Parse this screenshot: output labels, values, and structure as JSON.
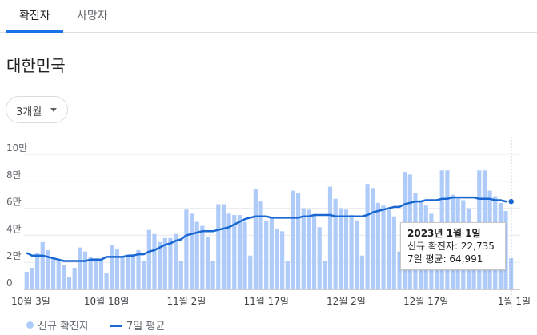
{
  "tabs": [
    {
      "label": "확진자",
      "active": true
    },
    {
      "label": "사망자",
      "active": false
    }
  ],
  "region": "대한민국",
  "range_select": {
    "value": "3개월"
  },
  "colors": {
    "bar": "#aecbfa",
    "line": "#1967d2",
    "tab_underline": "#1a73e8"
  },
  "chart_data": {
    "type": "bar",
    "y_ticks": [
      "0",
      "2만",
      "4만",
      "6만",
      "8만",
      "10만"
    ],
    "ylim": [
      0,
      110000
    ],
    "x_tick_labels": [
      "10월 3일",
      "10월 18일",
      "11월 2일",
      "11월 17일",
      "12월 2일",
      "12월 17일",
      "1월 1일"
    ],
    "series": [
      {
        "name": "신규 확진자",
        "type": "bar",
        "values": [
          13000,
          16000,
          27000,
          35000,
          29000,
          23000,
          21000,
          18000,
          9000,
          16000,
          31000,
          28000,
          24000,
          23000,
          22000,
          12000,
          33000,
          30000,
          24000,
          25000,
          26000,
          29000,
          21000,
          44000,
          41000,
          35000,
          38000,
          38000,
          41000,
          21000,
          59000,
          56000,
          50000,
          47000,
          39000,
          21000,
          63000,
          63000,
          56000,
          55000,
          55000,
          50000,
          25000,
          74000,
          65000,
          51000,
          53000,
          45000,
          43000,
          21000,
          73000,
          71000,
          60000,
          59000,
          55000,
          46000,
          21000,
          76000,
          67000,
          60000,
          59000,
          55000,
          51000,
          25000,
          78000,
          75000,
          64000,
          62000,
          59000,
          54000,
          28000,
          87000,
          85000,
          71000,
          66000,
          62000,
          56000,
          29000,
          88000,
          88000,
          70000,
          67000,
          66000,
          60000,
          34000,
          88000,
          88000,
          73000,
          69000,
          64000,
          58000,
          23000
        ],
        "bar_values_from_index_71_to_90_partially_hidden_by_tooltip": null
      },
      {
        "name": "7일 평균",
        "type": "line",
        "values": [
          27000,
          25000,
          25000,
          25000,
          24000,
          23000,
          22000,
          21000,
          21000,
          21000,
          21000,
          21000,
          22000,
          22000,
          22000,
          24000,
          24000,
          24000,
          24000,
          25000,
          25000,
          26000,
          26000,
          28000,
          29000,
          31000,
          33000,
          34000,
          36000,
          37000,
          40000,
          41000,
          42000,
          43000,
          43000,
          43000,
          44000,
          45000,
          46000,
          48000,
          50000,
          52000,
          53000,
          54000,
          54000,
          54000,
          53000,
          53000,
          53000,
          53000,
          53000,
          53000,
          54000,
          54000,
          55000,
          55000,
          55000,
          55000,
          54000,
          54000,
          54000,
          54000,
          54000,
          54000,
          55000,
          57000,
          58000,
          59000,
          60000,
          61000,
          61000,
          63000,
          64000,
          65000,
          65000,
          66000,
          66000,
          66000,
          67000,
          67000,
          68000,
          68000,
          68000,
          68000,
          68000,
          67000,
          67000,
          67000,
          66000,
          66000,
          65000,
          65000
        ]
      }
    ]
  },
  "tooltip": {
    "date": "2023년 1월 1일",
    "line1": "신규 확진자: 22,735",
    "line2": "7일 평균: 64,991"
  },
  "legend": {
    "bar_label": "신규 확진자",
    "line_label": "7일 평균"
  }
}
